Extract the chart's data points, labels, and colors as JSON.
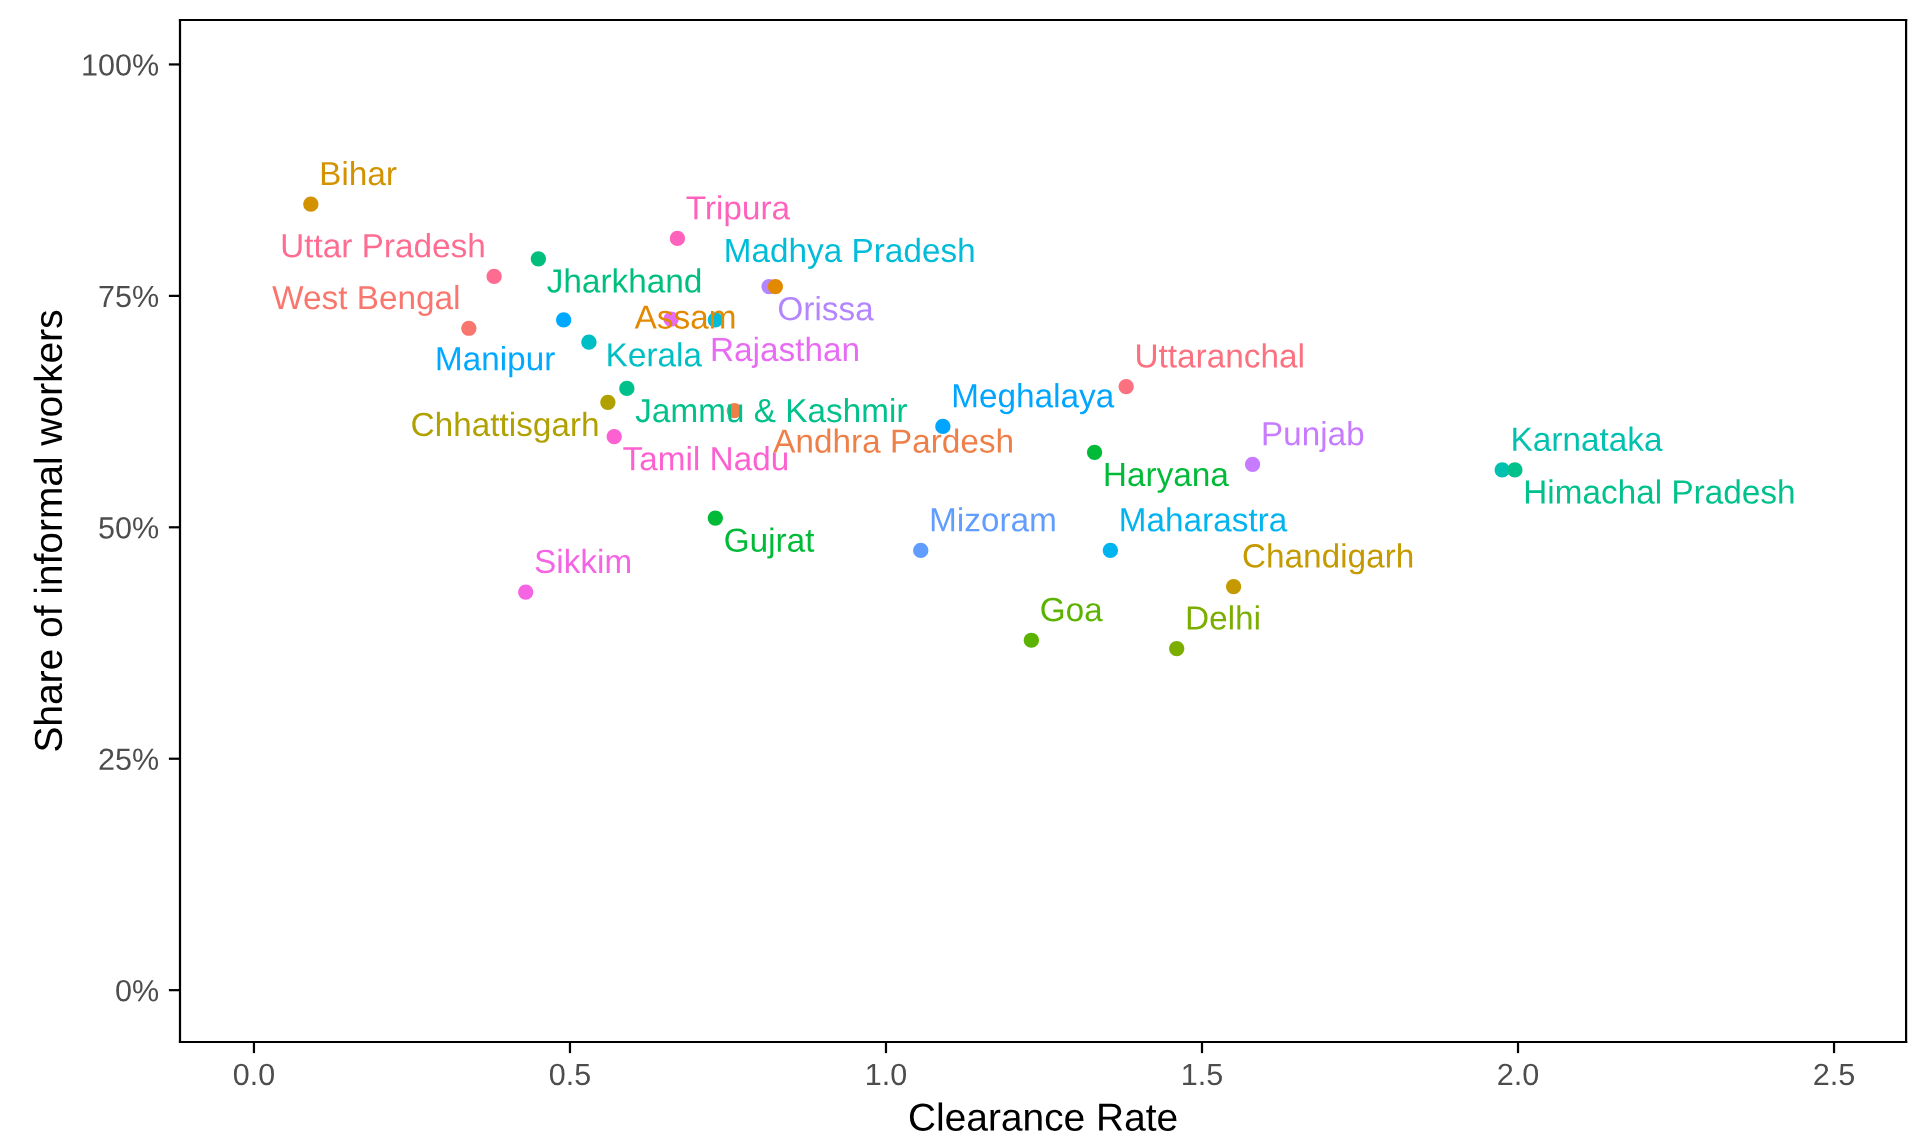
{
  "chart_data": {
    "type": "scatter",
    "xlabel": "Clearance Rate",
    "ylabel": "Share of informal workers",
    "xlim": [
      -0.117,
      2.614
    ],
    "ylim": [
      -5.6,
      104.8
    ],
    "xticks": [
      {
        "value": 0,
        "label": "0.0"
      },
      {
        "value": 0.5,
        "label": "0.5"
      },
      {
        "value": 1,
        "label": "1.0"
      },
      {
        "value": 1.5,
        "label": "1.5"
      },
      {
        "value": 2,
        "label": "2.0"
      },
      {
        "value": 2.5,
        "label": "2.5"
      }
    ],
    "yticks": [
      {
        "value": 0,
        "label": "0%"
      },
      {
        "value": 25,
        "label": "25%"
      },
      {
        "value": 50,
        "label": "50%"
      },
      {
        "value": 75,
        "label": "75%"
      },
      {
        "value": 100,
        "label": "100%"
      }
    ],
    "grid": false,
    "legend": false,
    "marker": "circle",
    "series": [
      {
        "name": "Bihar",
        "color": "#d39200",
        "x": [
          0.09
        ],
        "values": [
          84.9
        ]
      },
      {
        "name": "Uttar Pradesh",
        "color": "#ff6c91",
        "x": [
          0.38
        ],
        "values": [
          77.1
        ]
      },
      {
        "name": "Jharkhand",
        "color": "#00bf7d",
        "x": [
          0.45
        ],
        "values": [
          79.0
        ]
      },
      {
        "name": "Tripura",
        "color": "#ff62bc",
        "x": [
          0.67
        ],
        "values": [
          81.2
        ]
      },
      {
        "name": "West Bengal",
        "color": "#f8766d",
        "x": [
          0.34
        ],
        "values": [
          71.5
        ]
      },
      {
        "name": "Manipur",
        "color": "#00a9ff",
        "x": [
          0.49
        ],
        "values": [
          72.4
        ]
      },
      {
        "name": "Rajasthan",
        "color": "#e76bf3",
        "x": [
          0.66
        ],
        "values": [
          72.5
        ]
      },
      {
        "name": "Madhya Pradesh",
        "color": "#00bcd8",
        "x": [
          0.73
        ],
        "values": [
          72.4
        ]
      },
      {
        "name": "Kerala",
        "color": "#00bfc4",
        "x": [
          0.53
        ],
        "values": [
          70.0
        ]
      },
      {
        "name": "Orissa",
        "color": "#b385ff",
        "x": [
          0.815
        ],
        "values": [
          76.0
        ]
      },
      {
        "name": "Assam",
        "color": "#e38900",
        "x": [
          0.825
        ],
        "values": [
          76.0
        ]
      },
      {
        "name": "Jammu & Kashmir",
        "color": "#00c08b",
        "x": [
          0.59
        ],
        "values": [
          65.0
        ]
      },
      {
        "name": "Chhattisgarh",
        "color": "#b0a100",
        "x": [
          0.56
        ],
        "values": [
          63.5
        ]
      },
      {
        "name": "Andhra Pardesh",
        "color": "#ef7f49",
        "x": [
          0.76
        ],
        "values": [
          62.6
        ]
      },
      {
        "name": "Tamil Nadu",
        "color": "#fd61d1",
        "x": [
          0.57
        ],
        "values": [
          59.8
        ]
      },
      {
        "name": "Meghalaya",
        "color": "#00a5ff",
        "x": [
          1.09
        ],
        "values": [
          60.9
        ]
      },
      {
        "name": "Uttaranchal",
        "color": "#fc717f",
        "x": [
          1.38
        ],
        "values": [
          65.2
        ]
      },
      {
        "name": "Haryana",
        "color": "#00ba38",
        "x": [
          1.33
        ],
        "values": [
          58.1
        ]
      },
      {
        "name": "Punjab",
        "color": "#c77cff",
        "x": [
          1.58
        ],
        "values": [
          56.8
        ]
      },
      {
        "name": "Karnataka",
        "color": "#00c0af",
        "x": [
          1.975
        ],
        "values": [
          56.2
        ]
      },
      {
        "name": "Himachal Pradesh",
        "color": "#00c08b",
        "x": [
          1.995
        ],
        "values": [
          56.2
        ]
      },
      {
        "name": "Gujrat",
        "color": "#00ba38",
        "x": [
          0.73
        ],
        "values": [
          51.0
        ]
      },
      {
        "name": "Mizoram",
        "color": "#619cff",
        "x": [
          1.055
        ],
        "values": [
          47.5
        ]
      },
      {
        "name": "Maharastra",
        "color": "#00b4f0",
        "x": [
          1.355
        ],
        "values": [
          47.5
        ]
      },
      {
        "name": "Chandigarh",
        "color": "#c49a00",
        "x": [
          1.55
        ],
        "values": [
          43.6
        ]
      },
      {
        "name": "Sikkim",
        "color": "#f564e3",
        "x": [
          0.43
        ],
        "values": [
          43.0
        ]
      },
      {
        "name": "Goa",
        "color": "#5bb300",
        "x": [
          1.23
        ],
        "values": [
          37.8
        ]
      },
      {
        "name": "Delhi",
        "color": "#7cae00",
        "x": [
          1.46
        ],
        "values": [
          36.9
        ]
      }
    ]
  }
}
